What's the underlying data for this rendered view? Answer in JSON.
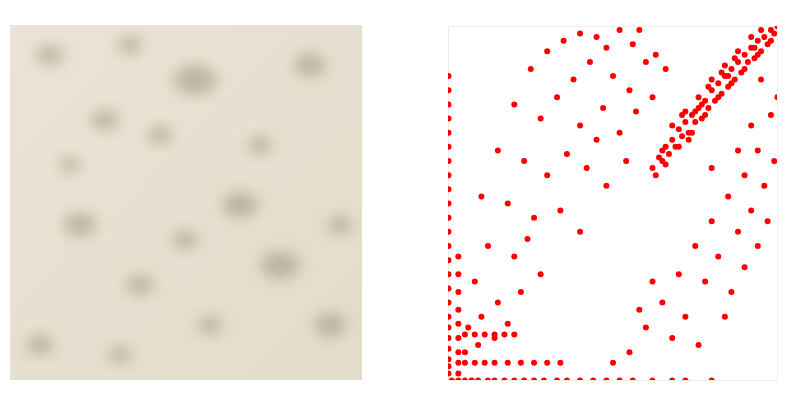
{
  "chart_data": {
    "type": "scatter",
    "color": "#ff0000",
    "marker": "circle",
    "tick_labels": false,
    "xlim": [
      0,
      100
    ],
    "ylim": [
      0,
      100
    ],
    "x": [
      62,
      64,
      65,
      66,
      67,
      68,
      69,
      70,
      71,
      72,
      73,
      74,
      75,
      76,
      77,
      78,
      79,
      80,
      81,
      82,
      83,
      84,
      85,
      86,
      87,
      88,
      89,
      90,
      91,
      92,
      93,
      94,
      95,
      96,
      97,
      98,
      99,
      100,
      63,
      66,
      70,
      74,
      78,
      82,
      86,
      90,
      94,
      98,
      68,
      72,
      76,
      80,
      84,
      88,
      92,
      71,
      79,
      87,
      95,
      65,
      75,
      85,
      93,
      73,
      77,
      83,
      30,
      35,
      40,
      45,
      48,
      52,
      56,
      58,
      25,
      38,
      43,
      50,
      55,
      60,
      63,
      20,
      28,
      33,
      40,
      47,
      52,
      57,
      15,
      23,
      30,
      36,
      42,
      48,
      10,
      18,
      26,
      34,
      40,
      12,
      20,
      28,
      8,
      15,
      22,
      6,
      10,
      14,
      18,
      5,
      9,
      24,
      45,
      62,
      66,
      54,
      60,
      65,
      70,
      72,
      75,
      78,
      80,
      82,
      85,
      88,
      90,
      92,
      94,
      96,
      98,
      99,
      100,
      86,
      90,
      94,
      76,
      68,
      84,
      97,
      55,
      50,
      58,
      62,
      88,
      92,
      95,
      80,
      0,
      0,
      0,
      0,
      0,
      0,
      0,
      0,
      0,
      0,
      0,
      0,
      0,
      0,
      0,
      0,
      0,
      0,
      0,
      0,
      0,
      0,
      0,
      0,
      3,
      3,
      3,
      3,
      3,
      3,
      3,
      3,
      3,
      1,
      3,
      5,
      7,
      9,
      12,
      14,
      17,
      20,
      23,
      26,
      29,
      33,
      36,
      40,
      44,
      48,
      52,
      56,
      62,
      68,
      72,
      80,
      5,
      8,
      11,
      14,
      18,
      22,
      26,
      30,
      34,
      5,
      8,
      11,
      14,
      17,
      20
    ],
    "values": [
      60,
      63,
      62,
      66,
      64,
      68,
      66,
      71,
      69,
      73,
      70,
      75,
      73,
      77,
      74,
      79,
      77,
      82,
      79,
      84,
      81,
      86,
      83,
      88,
      85,
      90,
      87,
      92,
      90,
      94,
      91,
      96,
      93,
      97,
      95,
      99,
      98,
      100,
      58,
      61,
      66,
      70,
      75,
      80,
      84,
      88,
      92,
      96,
      72,
      76,
      80,
      85,
      89,
      93,
      97,
      75,
      83,
      91,
      99,
      65,
      76,
      86,
      94,
      68,
      78,
      87,
      93,
      96,
      98,
      97,
      94,
      99,
      95,
      99,
      88,
      85,
      90,
      86,
      82,
      90,
      92,
      78,
      74,
      80,
      72,
      77,
      70,
      76,
      65,
      62,
      58,
      64,
      60,
      55,
      52,
      50,
      46,
      48,
      42,
      38,
      35,
      30,
      28,
      22,
      25,
      15,
      18,
      12,
      16,
      8,
      10,
      40,
      68,
      80,
      88,
      62,
      15,
      22,
      30,
      18,
      38,
      28,
      45,
      35,
      52,
      42,
      58,
      48,
      65,
      55,
      75,
      62,
      80,
      25,
      32,
      38,
      10,
      12,
      18,
      45,
      8,
      5,
      20,
      28,
      65,
      72,
      85,
      60,
      2,
      4,
      6,
      9,
      12,
      15,
      18,
      22,
      26,
      30,
      34,
      38,
      42,
      46,
      50,
      54,
      58,
      62,
      66,
      70,
      74,
      78,
      82,
      86,
      2,
      5,
      8,
      12,
      16,
      20,
      25,
      30,
      35,
      0,
      0,
      0,
      0,
      0,
      0,
      0,
      0,
      0,
      0,
      0,
      0,
      0,
      0,
      0,
      0,
      0,
      0,
      0,
      0,
      0,
      0,
      0,
      5,
      5,
      5,
      5,
      5,
      5,
      5,
      5,
      5,
      13,
      13,
      13,
      13,
      13,
      13
    ]
  }
}
